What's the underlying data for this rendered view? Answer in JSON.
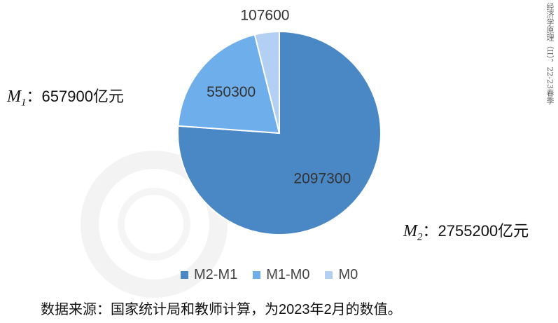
{
  "chart_data": {
    "type": "pie",
    "categories": [
      "M2-M1",
      "M1-M0",
      "M0"
    ],
    "values": [
      2097300,
      550300,
      107600
    ],
    "colors": [
      "#4a87c5",
      "#6eaeea",
      "#b3cff4"
    ],
    "data_labels": [
      "2097300",
      "550300",
      "107600"
    ],
    "legend": {
      "position": "bottom",
      "entries": [
        "M2-M1",
        "M1-M0",
        "M0"
      ]
    },
    "start_angle_deg": 0,
    "direction": "clockwise"
  },
  "annotations": {
    "m1": {
      "var": "M",
      "sub": "1",
      "sep": "：",
      "value": "657900亿元"
    },
    "m2": {
      "var": "M",
      "sub": "2",
      "sep": "：",
      "value": "2755200亿元"
    }
  },
  "source_note": "数据来源：国家统计局和教师计算，为2023年2月的数值。",
  "side_text": "经济学原理（II），22-23春季"
}
